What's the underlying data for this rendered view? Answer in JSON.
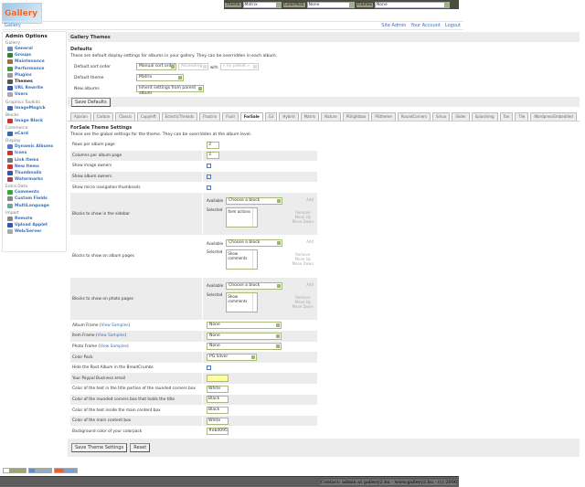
{
  "topbar": {
    "theme_label": "Theme",
    "theme_value": "Matrix",
    "colorpack_label": "ColorPack",
    "colorpack_value": "None",
    "frames_label": "Frames",
    "frames_value": "None"
  },
  "logo_text": "Gallery",
  "breadcrumb": {
    "root": "Gallery",
    "links": [
      "Site Admin",
      "Your Account",
      "Logout"
    ]
  },
  "sidebar": {
    "title": "Admin Options",
    "groups": [
      {
        "label": "Gallery",
        "items": [
          {
            "label": "General",
            "icon": "general-icon",
            "color": "#6a8fc8"
          },
          {
            "label": "Groups",
            "icon": "groups-icon",
            "color": "#3a7a3a"
          },
          {
            "label": "Maintenance",
            "icon": "maintenance-icon",
            "color": "#a07040"
          },
          {
            "label": "Performance",
            "icon": "performance-icon",
            "color": "#40a040"
          },
          {
            "label": "Plugins",
            "icon": "plugins-icon",
            "color": "#999"
          },
          {
            "label": "Themes",
            "icon": "themes-icon",
            "color": "#555",
            "current": true
          },
          {
            "label": "URL Rewrite",
            "icon": "url-rewrite-icon",
            "color": "#3355aa"
          },
          {
            "label": "Users",
            "icon": "users-icon",
            "color": "#aaa"
          }
        ]
      },
      {
        "label": "Graphics Toolkits",
        "items": [
          {
            "label": "ImageMagick",
            "icon": "imagemagick-icon",
            "color": "#4466aa"
          }
        ]
      },
      {
        "label": "Blocks",
        "items": [
          {
            "label": "Image Block",
            "icon": "image-block-icon",
            "color": "#cc3333"
          }
        ]
      },
      {
        "label": "Commerce",
        "items": [
          {
            "label": "eCard",
            "icon": "ecard-icon",
            "color": "#3366aa"
          }
        ]
      },
      {
        "label": "Display",
        "items": [
          {
            "label": "Dynamic Albums",
            "icon": "dynamic-albums-icon",
            "color": "#5577cc"
          },
          {
            "label": "Icons",
            "icon": "icons-icon",
            "color": "#cc3333"
          },
          {
            "label": "Link Items",
            "icon": "link-items-icon",
            "color": "#777"
          },
          {
            "label": "New Items",
            "icon": "new-items-icon",
            "color": "#cc3333"
          },
          {
            "label": "Thumbnails",
            "icon": "thumbnails-icon",
            "color": "#3355aa"
          },
          {
            "label": "Watermarks",
            "icon": "watermarks-icon",
            "color": "#aa4444"
          }
        ]
      },
      {
        "label": "Extra Data",
        "items": [
          {
            "label": "Comments",
            "icon": "comments-icon",
            "color": "#33aa33"
          },
          {
            "label": "Custom Fields",
            "icon": "custom-fields-icon",
            "color": "#888"
          },
          {
            "label": "MultiLanguage",
            "icon": "multilanguage-icon",
            "color": "#66aa99"
          }
        ]
      },
      {
        "label": "Import",
        "items": [
          {
            "label": "Remote",
            "icon": "remote-icon",
            "color": "#888"
          },
          {
            "label": "Upload Applet",
            "icon": "upload-applet-icon",
            "color": "#3355aa"
          },
          {
            "label": "Web/Server",
            "icon": "web-server-icon",
            "color": "#aaa"
          }
        ]
      }
    ]
  },
  "main": {
    "title": "Gallery Themes",
    "defaults": {
      "heading": "Defaults",
      "description": "These are default display settings for albums in your gallery. They can be overridden in each album.",
      "sort_label": "Default sort order",
      "sort_value": "Manual sort order",
      "sort_dir": "Ascending",
      "with_label": "with",
      "preset": "« no preset »",
      "theme_label": "Default theme",
      "theme_value": "Matrix",
      "new_albums_label": "New albums",
      "new_albums_value": "Inherit settings from parent album",
      "save_button": "Save Defaults"
    },
    "tabs": [
      "Ajaxian",
      "Carbon",
      "Classic",
      "Copyleft",
      "EclecticThreads",
      "Floatrix",
      "Fluid",
      "ForSale",
      "G3",
      "Hybrid",
      "Matrix",
      "Nature",
      "PGlightbox",
      "PGtheme",
      "RoundCorners",
      "Siriux",
      "Slider",
      "Splashimg",
      "Tan",
      "Tile",
      "WordpressEmbedded"
    ],
    "active_tab": "ForSale",
    "theme_settings": {
      "heading": "ForSale Theme Settings",
      "description": "These are the global settings for the theme. They can be overridden at the album level.",
      "rows_label": "Rows per album page",
      "rows_value": "3",
      "cols_label": "Columns per album page",
      "cols_value": "3",
      "image_owners_label": "Show image owners",
      "image_owners": false,
      "album_owners_label": "Show album owners",
      "album_owners": true,
      "micro_label": "Show micro navigation thumbnails",
      "micro": true,
      "available_label": "Available",
      "selected_label": "Selected",
      "choose": "Choose a block",
      "add": "Add",
      "remove": "Remove",
      "move_up": "Move Up",
      "move_down": "Move Down",
      "blocks": [
        {
          "label": "Blocks to show in the sidebar",
          "selected": "Item actions"
        },
        {
          "label": "Blocks to show on album pages",
          "selected": "Show comments"
        },
        {
          "label": "Blocks to show on photo pages",
          "selected": "Show comments"
        }
      ],
      "view_samples": "View Samples",
      "album_frame_label": "Album Frame",
      "album_frame": "None",
      "item_frame_label": "Item Frame",
      "item_frame": "None",
      "photo_frame_label": "Photo Frame",
      "photo_frame": "None",
      "color_pack_label": "Color Pack",
      "color_pack": "PG Silver",
      "hide_root_label": "Hide the Root Album in the BreadCrumbs",
      "hide_root": false,
      "paypal_label": "Your Paypal Business email",
      "paypal": "",
      "title_text_label": "Color of the text in the title portion of the rounded corners box",
      "title_text": "White",
      "rounded_label": "Color of the rounded corners box that holds the title",
      "rounded": "Black",
      "inside_text_label": "Color of the text inside the main content box",
      "inside_text": "Black",
      "main_box_label": "Color of the main content box",
      "main_box": "White",
      "bg_label": "Background color of your colorpack",
      "bg": "#ebd095",
      "save_button": "Save Theme Settings",
      "reset_button": "Reset"
    }
  },
  "footer": {
    "contact": "Contact: admin at gallery2.hu - www.gallery2.hu - (c) 2006"
  }
}
